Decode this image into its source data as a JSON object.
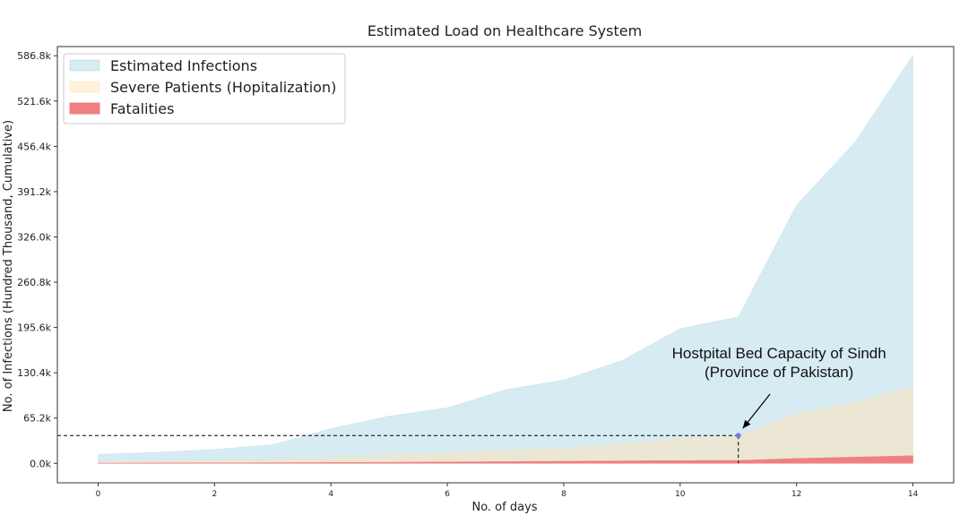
{
  "chart_data": {
    "type": "area",
    "title": "Estimated Load on Healthcare System",
    "xlabel": "No. of days",
    "ylabel": "No. of Infections (Hundred Thousand, Cumulative)",
    "xlim": [
      -0.7,
      14.7
    ],
    "ylim": [
      -28000,
      600000
    ],
    "x": [
      0,
      1,
      2,
      3,
      4,
      5,
      6,
      7,
      8,
      9,
      10,
      11,
      12,
      13,
      14
    ],
    "xticks": [
      0,
      2,
      4,
      6,
      8,
      10,
      12,
      14
    ],
    "xtick_labels": [
      "0",
      "2",
      "4",
      "6",
      "8",
      "10",
      "12",
      "14"
    ],
    "yticks": [
      0,
      65200,
      130400,
      195600,
      260800,
      326000,
      391200,
      456400,
      521600,
      586800
    ],
    "ytick_labels": [
      "0.0k",
      "65.2k",
      "130.4k",
      "195.6k",
      "260.8k",
      "326.0k",
      "391.2k",
      "456.4k",
      "521.6k",
      "586.8k"
    ],
    "series": [
      {
        "name": "Estimated Infections",
        "color": "#add8e6",
        "opacity": 0.5,
        "values": [
          13000,
          16000,
          20000,
          27000,
          50000,
          68000,
          80000,
          106000,
          120000,
          148000,
          194000,
          211000,
          372000,
          462000,
          588000
        ]
      },
      {
        "name": "Severe Patients (Hopitalization)",
        "color": "#ffe4b5",
        "opacity": 0.5,
        "values": [
          2500,
          3300,
          4200,
          5500,
          9000,
          12000,
          15000,
          19000,
          22000,
          28000,
          36000,
          40000,
          71000,
          88000,
          110000
        ]
      },
      {
        "name": "Fatalities",
        "color": "#f08080",
        "opacity": 1.0,
        "values": [
          300,
          500,
          700,
          900,
          1200,
          1500,
          2000,
          2500,
          3000,
          3500,
          4000,
          4200,
          7000,
          9000,
          11000
        ]
      }
    ],
    "legend": {
      "position": "top-left"
    },
    "annotations": [
      {
        "text_lines": [
          "Hostpital Bed Capacity of Sindh",
          "(Province of Pakistan)"
        ],
        "point": {
          "x": 11,
          "y": 40000
        },
        "hline_y": 40000
      }
    ]
  }
}
